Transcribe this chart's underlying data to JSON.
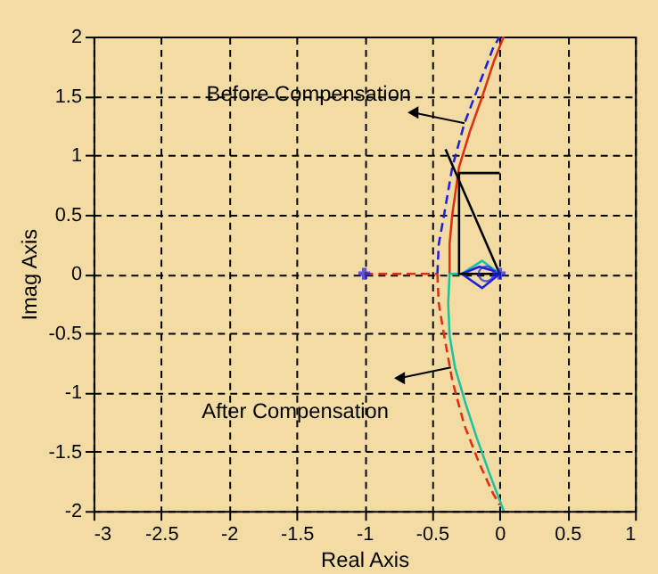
{
  "chart_data": {
    "type": "line",
    "xlabel": "Real Axis",
    "ylabel": "Imag Axis",
    "xlim": [
      -3,
      1
    ],
    "ylim": [
      -2,
      2
    ],
    "xticks": [
      -3,
      -2.5,
      -2,
      -1.5,
      -1,
      -0.5,
      0,
      0.5,
      1
    ],
    "yticks": [
      -2,
      -1.5,
      -1,
      -0.5,
      0,
      0.5,
      1,
      1.5,
      2
    ],
    "grid": true,
    "series": [
      {
        "type": "line",
        "color": "#e03010",
        "line_style": "solid",
        "x": [
          -0.37,
          -0.37,
          -0.35,
          -0.3,
          -0.22,
          -0.13,
          -0.04,
          0.03
        ],
        "values": [
          0,
          0.25,
          0.5,
          0.9,
          1.2,
          1.49,
          1.8,
          2.0
        ]
      },
      {
        "type": "line",
        "color": "#20c0a0",
        "line_style": "solid",
        "x": [
          -0.37,
          -0.38,
          -0.37,
          -0.33,
          -0.25,
          -0.17,
          -0.07,
          0.03
        ],
        "values": [
          0,
          -0.25,
          -0.52,
          -0.79,
          -1.1,
          -1.38,
          -1.7,
          -2.0
        ]
      },
      {
        "type": "line",
        "color": "#2020e0",
        "line_style": "dashed",
        "x": [
          -0.46,
          -0.45,
          -0.41,
          -0.35,
          -0.26,
          -0.15,
          -0.05,
          0.0
        ],
        "values": [
          0,
          0.25,
          0.5,
          0.9,
          1.27,
          1.6,
          1.9,
          2.0
        ]
      },
      {
        "type": "line",
        "color": "#e03010",
        "line_style": "dashed",
        "x": [
          -0.46,
          -0.45,
          -0.41,
          -0.35,
          -0.26,
          -0.15,
          -0.05,
          0.0
        ],
        "values": [
          0,
          -0.25,
          -0.52,
          -0.9,
          -1.28,
          -1.6,
          -1.85,
          -1.95
        ]
      },
      {
        "type": "line",
        "color": "#e03010",
        "line_style": "dashed",
        "x": [
          -1,
          -0.46
        ],
        "values": [
          0,
          0
        ]
      },
      {
        "type": "line",
        "color": "#20c0a0",
        "line_style": "solid",
        "x": [
          -0.37,
          -0.28,
          -0.13,
          0
        ],
        "values": [
          0,
          0,
          0.11,
          0
        ]
      },
      {
        "color": "#2020e0",
        "line_style": "solid",
        "x": [
          0,
          -0.13,
          -0.28,
          -0.15,
          -0.03
        ],
        "values": [
          0,
          -0.12,
          0,
          0.06,
          0.02
        ]
      },
      {
        "type": "line",
        "color": "#000000",
        "line_style": "solid",
        "x": [
          0,
          -0.3,
          -0.3,
          0
        ],
        "values": [
          0.85,
          0.85,
          0,
          0
        ]
      },
      {
        "type": "line",
        "color": "#000000",
        "line_style": "solid",
        "x": [
          0,
          -0.4
        ],
        "values": [
          0,
          1.05
        ]
      },
      {
        "type": "scatter",
        "color": "#2020e0",
        "marker": "cross",
        "x": [
          -1,
          0
        ],
        "values": [
          0,
          0
        ]
      },
      {
        "type": "scatter",
        "color": "#2020e0",
        "marker": "circle",
        "x": [
          -0.1
        ],
        "values": [
          0
        ]
      }
    ],
    "annotations": [
      {
        "text": "Before Compensation",
        "x": -0.26,
        "y": 1.27
      },
      {
        "text": "After Compensation",
        "x": -0.36,
        "y": -0.79
      }
    ]
  }
}
